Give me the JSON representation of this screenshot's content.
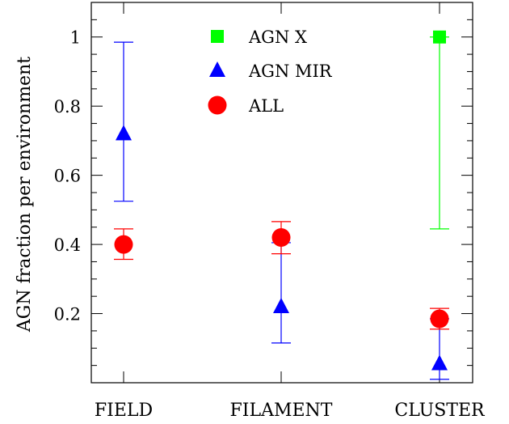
{
  "chart_data": {
    "type": "scatter",
    "title": "",
    "xlabel": "",
    "ylabel": "AGN fraction per environment",
    "categories": [
      "FIELD",
      "FILAMENT",
      "CLUSTER"
    ],
    "ylim": [
      0,
      1.1
    ],
    "yticks": [
      0.2,
      0.4,
      0.6,
      0.8,
      1
    ],
    "ytick_labels": [
      "0.2",
      "0.4",
      "0.6",
      "0.8",
      "1"
    ],
    "grid": false,
    "legend": "top-center",
    "series": [
      {
        "name": "AGN X",
        "marker": "square",
        "color": "#00ff00",
        "points": [
          {
            "category": "CLUSTER",
            "y": 1.0,
            "err_low": 0.445,
            "err_high": 1.0
          }
        ]
      },
      {
        "name": "AGN MIR",
        "marker": "triangle",
        "color": "#0000ff",
        "points": [
          {
            "category": "FIELD",
            "y": 0.72,
            "err_low": 0.525,
            "err_high": 0.985
          },
          {
            "category": "FILAMENT",
            "y": 0.22,
            "err_low": 0.115,
            "err_high": 0.405
          },
          {
            "category": "CLUSTER",
            "y": 0.055,
            "err_low": 0.01,
            "err_high": 0.185
          }
        ]
      },
      {
        "name": "ALL",
        "marker": "circle",
        "color": "#ff0000",
        "points": [
          {
            "category": "FIELD",
            "y": 0.4,
            "err_low": 0.357,
            "err_high": 0.445
          },
          {
            "category": "FILAMENT",
            "y": 0.42,
            "err_low": 0.373,
            "err_high": 0.466
          },
          {
            "category": "CLUSTER",
            "y": 0.185,
            "err_low": 0.155,
            "err_high": 0.215
          }
        ]
      }
    ]
  }
}
